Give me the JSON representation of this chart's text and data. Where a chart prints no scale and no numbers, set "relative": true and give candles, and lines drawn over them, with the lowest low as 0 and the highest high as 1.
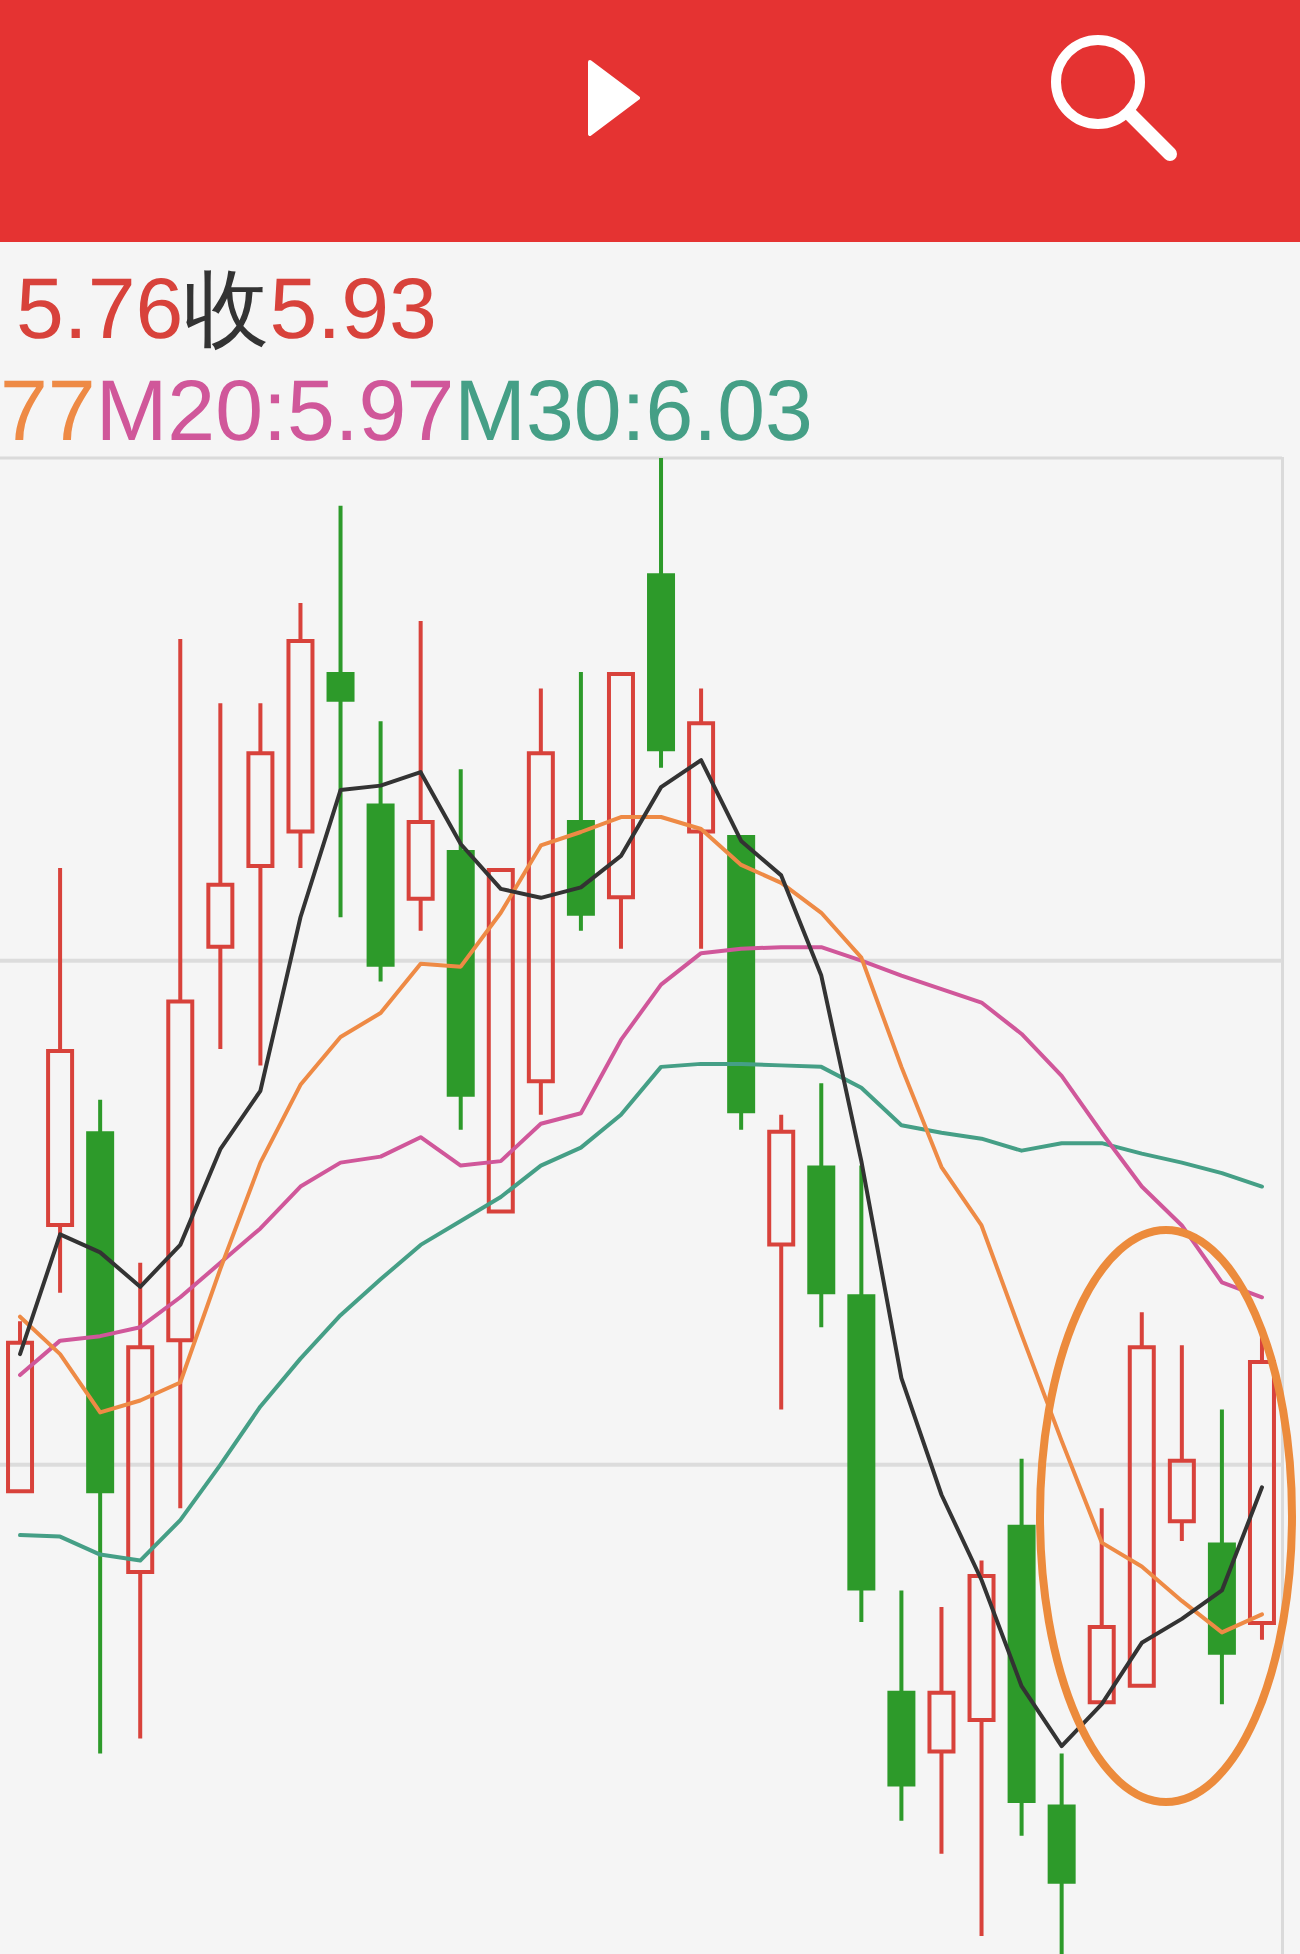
{
  "chart_data": {
    "type": "candlestick",
    "relative": true,
    "tick_labels": false,
    "legend": "top left",
    "marker": "none",
    "line_style": "solid",
    "categories": [
      null,
      null,
      null,
      null,
      null,
      null,
      null,
      null,
      null,
      null,
      null,
      null,
      null,
      null,
      null,
      null,
      null,
      null,
      null,
      null,
      null,
      null,
      null,
      null,
      null,
      null,
      null,
      null,
      null,
      null,
      null,
      null
    ],
    "ref_lines": [
      {
        "axis": "y",
        "value": 0.664,
        "color": "#dcdcdc"
      },
      {
        "axis": "y",
        "value": 0.327,
        "color": "#dcdcdc"
      }
    ],
    "ohlc": [
      [
        0.308,
        0.423,
        0.308,
        0.41
      ],
      [
        0.486,
        0.726,
        0.442,
        0.605
      ],
      [
        0.55,
        0.571,
        0.134,
        0.308
      ],
      [
        0.254,
        0.462,
        0.144,
        0.407
      ],
      [
        0.409,
        0.879,
        0.298,
        0.638
      ],
      [
        0.672,
        0.836,
        0.605,
        0.716
      ],
      [
        0.726,
        0.836,
        0.594,
        0.804
      ],
      [
        0.749,
        0.903,
        0.726,
        0.879
      ],
      [
        0.857,
        0.968,
        0.693,
        0.837
      ],
      [
        0.769,
        0.824,
        0.65,
        0.66
      ],
      [
        0.704,
        0.891,
        0.684,
        0.758
      ],
      [
        0.738,
        0.792,
        0.551,
        0.573
      ],
      [
        0.495,
        0.726,
        0.495,
        0.726
      ],
      [
        0.582,
        0.846,
        0.561,
        0.804
      ],
      [
        0.758,
        0.857,
        0.684,
        0.694
      ],
      [
        0.705,
        0.857,
        0.672,
        0.857
      ],
      [
        0.923,
        1,
        0.793,
        0.804
      ],
      [
        0.749,
        0.846,
        0.672,
        0.824
      ],
      [
        0.748,
        0.748,
        0.551,
        0.562
      ],
      [
        0.473,
        0.561,
        0.364,
        0.551
      ],
      [
        0.527,
        0.582,
        0.419,
        0.441
      ],
      [
        0.441,
        0.527,
        0.222,
        0.243
      ],
      [
        0.176,
        0.243,
        0.089,
        0.112
      ],
      [
        0.134,
        0.232,
        0.067,
        0.176
      ],
      [
        0.155,
        0.263,
        0.012,
        0.254
      ],
      [
        0.287,
        0.331,
        0.079,
        0.101
      ],
      [
        0.1,
        0.134,
        0,
        0.047
      ],
      [
        0.167,
        0.298,
        0.167,
        0.22
      ],
      [
        0.178,
        0.429,
        0.178,
        0.407
      ],
      [
        0.288,
        0.407,
        0.276,
        0.331
      ],
      [
        0.275,
        0.364,
        0.167,
        0.2
      ],
      [
        0.22,
        0.418,
        0.21,
        0.397
      ]
    ],
    "colors": [
      "#d8423b",
      "#d8423b",
      "#2d9a2a",
      "#d8423b",
      "#d8423b",
      "#d8423b",
      "#d8423b",
      "#d8423b",
      "#2d9a2a",
      "#2d9a2a",
      "#d8423b",
      "#2d9a2a",
      "#d8423b",
      "#d8423b",
      "#2d9a2a",
      "#d8423b",
      "#2d9a2a",
      "#d8423b",
      "#2d9a2a",
      "#d8423b",
      "#2d9a2a",
      "#2d9a2a",
      "#2d9a2a",
      "#d8423b",
      "#d8423b",
      "#2d9a2a",
      "#2d9a2a",
      "#d8423b",
      "#d8423b",
      "#d8423b",
      "#2d9a2a",
      "#d8423b"
    ],
    "series": [
      {
        "type": "line",
        "color": "#333333",
        "values": [
          0.401,
          0.481,
          0.469,
          0.446,
          0.474,
          0.538,
          0.577,
          0.693,
          0.778,
          0.781,
          0.79,
          0.742,
          0.712,
          0.706,
          0.713,
          0.734,
          0.78,
          0.798,
          0.744,
          0.721,
          0.654,
          0.53,
          0.385,
          0.307,
          0.25,
          0.179,
          0.139,
          0.167,
          0.208,
          0.224,
          0.243,
          0.312
        ]
      },
      {
        "type": "line",
        "name": "77",
        "color": "#ee8a45",
        "values": [
          0.426,
          0.401,
          0.362,
          0.37,
          0.382,
          0.458,
          0.529,
          0.581,
          0.613,
          0.629,
          0.662,
          0.66,
          0.696,
          0.741,
          0.75,
          0.76,
          0.76,
          0.752,
          0.728,
          0.716,
          0.696,
          0.666,
          0.593,
          0.526,
          0.487,
          0.414,
          0.343,
          0.275,
          0.259,
          0.236,
          0.215,
          0.227
        ]
      },
      {
        "type": "line",
        "name": "M20:5.97",
        "color": "#d0579a",
        "values": [
          0.387,
          0.41,
          0.413,
          0.419,
          0.439,
          0.462,
          0.485,
          0.513,
          0.529,
          0.533,
          0.546,
          0.527,
          0.53,
          0.555,
          0.562,
          0.611,
          0.648,
          0.669,
          0.672,
          0.673,
          0.673,
          0.664,
          0.654,
          0.645,
          0.636,
          0.615,
          0.587,
          0.549,
          0.513,
          0.487,
          0.449,
          0.439
        ]
      },
      {
        "type": "line",
        "name": "M30:6.03",
        "color": "#459f86",
        "values": [
          0.28,
          0.279,
          0.267,
          0.263,
          0.29,
          0.327,
          0.366,
          0.398,
          0.427,
          0.451,
          0.474,
          0.49,
          0.506,
          0.527,
          0.539,
          0.561,
          0.593,
          0.595,
          0.595,
          0.594,
          0.593,
          0.579,
          0.554,
          0.549,
          0.545,
          0.537,
          0.542,
          0.542,
          0.535,
          0.529,
          0.522,
          0.513
        ]
      }
    ],
    "annotations": [
      "5.76",
      "收",
      "5.93"
    ]
  }
}
